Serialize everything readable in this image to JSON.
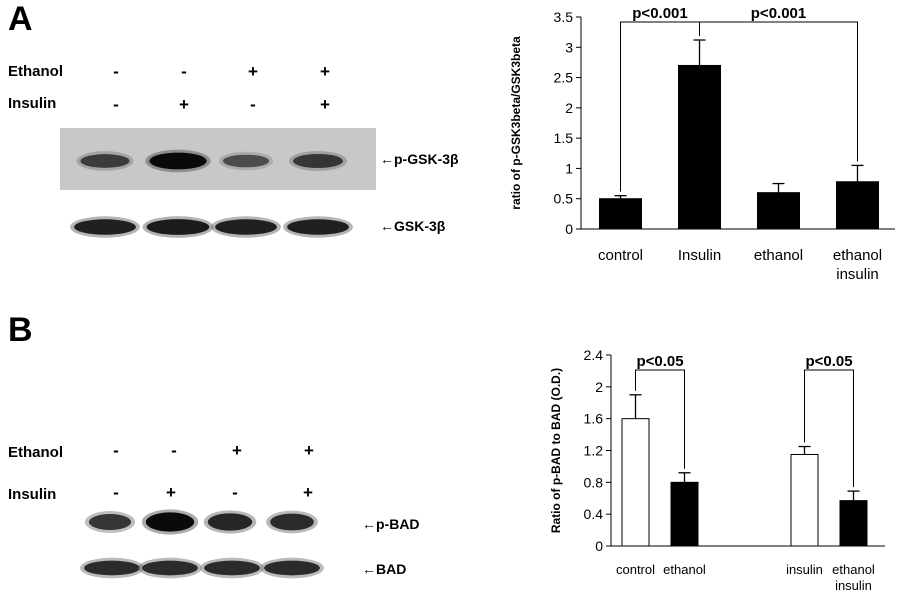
{
  "panel_a": {
    "letter": "A",
    "rows": [
      {
        "label": "Ethanol",
        "signs": [
          "-",
          "-",
          "+",
          "+"
        ]
      },
      {
        "label": "Insulin",
        "signs": [
          "-",
          "+",
          "-",
          "+"
        ]
      }
    ],
    "blots": [
      {
        "label": "p-GSK-3β",
        "arrow": "←",
        "intensity": [
          0.55,
          1.0,
          0.4,
          0.6
        ],
        "background": "#c8c8c8"
      },
      {
        "label": "GSK-3β",
        "arrow": "←",
        "intensity": [
          0.8,
          0.85,
          0.8,
          0.8
        ],
        "background": "#ffffff"
      }
    ]
  },
  "panel_b": {
    "letter": "B",
    "rows": [
      {
        "label": "Ethanol",
        "signs": [
          "-",
          "-",
          "+",
          "+"
        ]
      },
      {
        "label": "Insulin",
        "signs": [
          "-",
          "+",
          "-",
          "+"
        ]
      }
    ],
    "blots": [
      {
        "label": "p-BAD",
        "arrow": "←",
        "intensity": [
          0.6,
          1.0,
          0.75,
          0.7
        ],
        "background": "#ffffff"
      },
      {
        "label": "BAD",
        "arrow": "←",
        "intensity": [
          0.7,
          0.7,
          0.7,
          0.7
        ],
        "background": "#ffffff"
      }
    ]
  },
  "chart_data": [
    {
      "type": "bar",
      "title": "",
      "xlabel": "",
      "ylabel": "ratio of p-GSK3beta/GSK3beta",
      "categories": [
        [
          "control"
        ],
        [
          "Insulin"
        ],
        [
          "ethanol"
        ],
        [
          "ethanol",
          "insulin"
        ]
      ],
      "values": [
        0.5,
        2.7,
        0.6,
        0.78
      ],
      "errors": [
        0.05,
        0.42,
        0.15,
        0.27
      ],
      "bar_colors": [
        "#000000",
        "#000000",
        "#000000",
        "#000000"
      ],
      "ylim": [
        0,
        3.5
      ],
      "yticks": [
        "0",
        "0.5",
        "1",
        "1.5",
        "2",
        "2.5",
        "3",
        "3.5"
      ],
      "ytick_values": [
        0,
        0.5,
        1,
        1.5,
        2,
        2.5,
        3,
        3.5
      ],
      "grid": false,
      "annotations": [
        {
          "text": "p<0.001",
          "from": 0,
          "to": 1
        },
        {
          "text": "p<0.001",
          "from": 1,
          "to": 3
        }
      ]
    },
    {
      "type": "bar",
      "title": "",
      "xlabel": "",
      "ylabel": "Ratio of p-BAD to BAD (O.D.)",
      "categories": [
        [
          "control"
        ],
        [
          "ethanol"
        ],
        [
          "insulin"
        ],
        [
          "ethanol",
          "insulin"
        ]
      ],
      "values": [
        1.6,
        0.8,
        1.15,
        0.57
      ],
      "errors": [
        0.3,
        0.12,
        0.1,
        0.12
      ],
      "bar_colors": [
        "#ffffff",
        "#000000",
        "#ffffff",
        "#000000"
      ],
      "ylim": [
        0,
        2.4
      ],
      "yticks": [
        "0",
        "0.4",
        "0.8",
        "1.2",
        "1.6",
        "2",
        "2.4"
      ],
      "ytick_values": [
        0,
        0.4,
        0.8,
        1.2,
        1.6,
        2,
        2.4
      ],
      "grid": false,
      "annotations": [
        {
          "text": "p<0.05",
          "from": 0,
          "to": 1
        },
        {
          "text": "p<0.05",
          "from": 2,
          "to": 3
        }
      ]
    }
  ]
}
